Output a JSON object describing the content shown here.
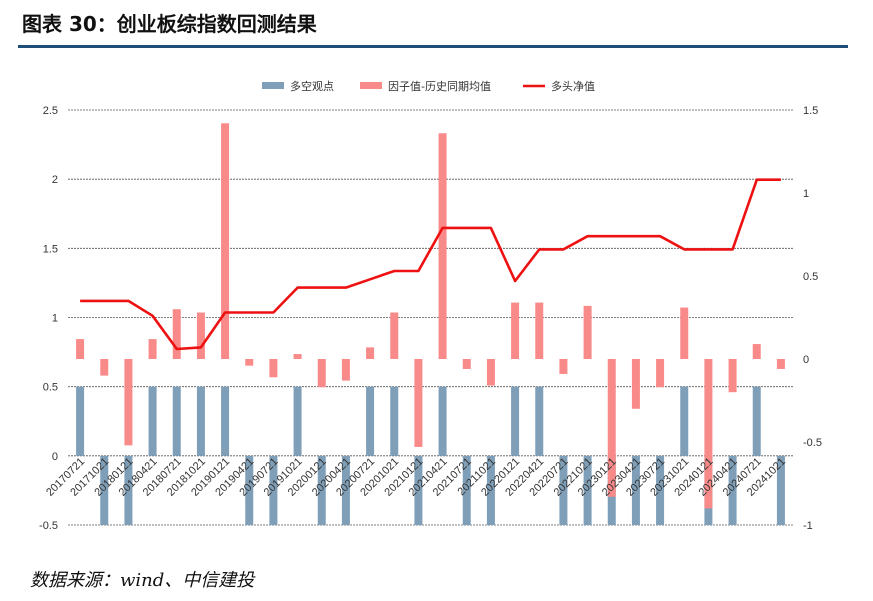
{
  "title": "图表 30：创业板综指数回测结果",
  "source": "数据来源：wind、中信建投",
  "chart_data": {
    "type": "bar",
    "categories": [
      "20170721",
      "20171021",
      "20180121",
      "20180421",
      "20180721",
      "20181021",
      "20190121",
      "20190421",
      "20190721",
      "20191021",
      "20200121",
      "20200421",
      "20200721",
      "20201021",
      "20210121",
      "20210421",
      "20210721",
      "20211021",
      "20220121",
      "20220421",
      "20220721",
      "20221021",
      "20230121",
      "20230421",
      "20230721",
      "20231021",
      "20240121",
      "20240421",
      "20240721",
      "20241021"
    ],
    "series": [
      {
        "name": "多空观点",
        "type": "bar",
        "axis": "left",
        "color": "#7f9fb8",
        "values": [
          0.5,
          -0.5,
          -0.5,
          0.5,
          0.5,
          0.5,
          0.5,
          -0.5,
          -0.5,
          0.5,
          -0.5,
          -0.5,
          0.5,
          0.5,
          -0.5,
          0.5,
          -0.5,
          -0.5,
          0.5,
          0.5,
          -0.5,
          -0.5,
          -0.5,
          -0.5,
          -0.5,
          0.5,
          -0.5,
          -0.5,
          0.5,
          -0.5
        ]
      },
      {
        "name": "因子值-历史同期均值",
        "type": "bar",
        "axis": "right",
        "color": "#f98a8a",
        "values": [
          0.12,
          -0.1,
          -0.52,
          0.12,
          0.3,
          0.28,
          1.42,
          -0.04,
          -0.11,
          0.03,
          -0.17,
          -0.13,
          0.07,
          0.28,
          -0.53,
          1.36,
          -0.06,
          -0.16,
          0.34,
          0.34,
          -0.09,
          0.32,
          -0.83,
          -0.3,
          -0.17,
          0.31,
          -0.9,
          -0.2,
          0.09,
          -0.06
        ]
      },
      {
        "name": "多头净值",
        "type": "line",
        "axis": "right",
        "color": "#ee1111",
        "values": [
          0.35,
          0.35,
          0.35,
          0.26,
          0.06,
          0.07,
          0.28,
          0.28,
          0.28,
          0.43,
          0.43,
          0.43,
          0.48,
          0.53,
          0.53,
          0.79,
          0.79,
          0.79,
          0.47,
          0.66,
          0.66,
          0.74,
          0.74,
          0.74,
          0.74,
          0.66,
          0.66,
          0.66,
          1.08,
          1.08
        ]
      }
    ],
    "left_axis": {
      "min": -0.5,
      "max": 2.5,
      "ticks": [
        "-0.5",
        "0",
        "0.5",
        "1",
        "1.5",
        "2",
        "2.5"
      ]
    },
    "right_axis": {
      "min": -1,
      "max": 1.5,
      "ticks": [
        "-1",
        "-0.5",
        "0",
        "0.5",
        "1",
        "1.5"
      ]
    },
    "grid": true,
    "legend_position": "top"
  }
}
